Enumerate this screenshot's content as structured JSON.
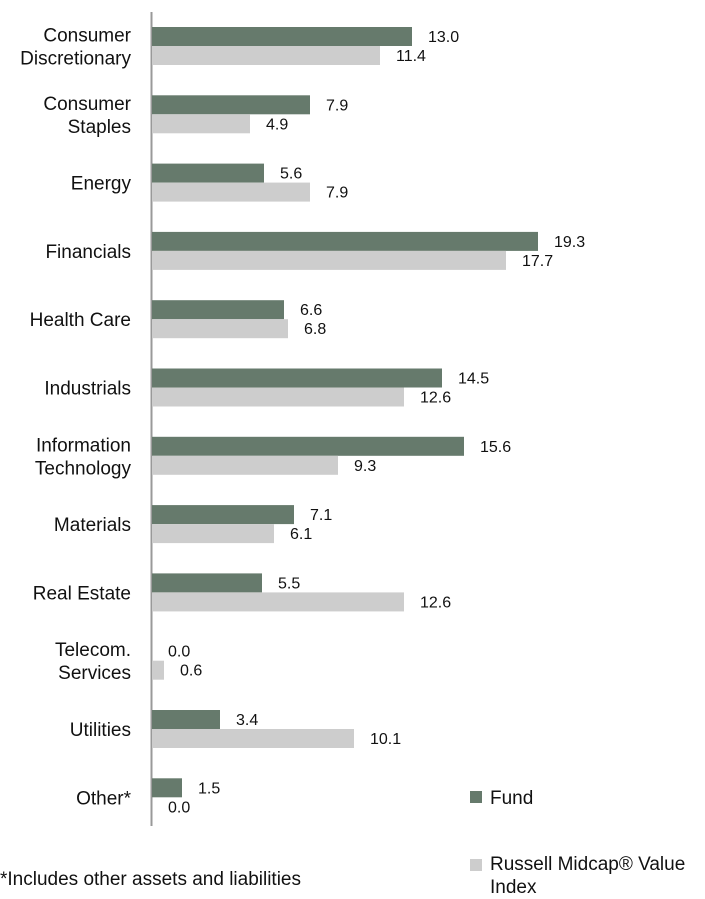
{
  "chart_data": {
    "type": "bar",
    "orientation": "horizontal",
    "categories": [
      [
        "Consumer",
        "Discretionary"
      ],
      [
        "Consumer",
        "Staples"
      ],
      [
        "Energy"
      ],
      [
        "Financials"
      ],
      [
        "Health Care"
      ],
      [
        "Industrials"
      ],
      [
        "Information",
        "Technology"
      ],
      [
        "Materials"
      ],
      [
        "Real Estate"
      ],
      [
        "Telecom.",
        "Services"
      ],
      [
        "Utilities"
      ],
      [
        "Other*"
      ]
    ],
    "series": [
      {
        "name": "Fund",
        "color": "#667a6c",
        "values": [
          13.0,
          7.9,
          5.6,
          19.3,
          6.6,
          14.5,
          15.6,
          7.1,
          5.5,
          0.0,
          3.4,
          1.5
        ]
      },
      {
        "name": "Russell Midcap® Value Index",
        "color": "#cdcdcd",
        "values": [
          11.4,
          4.9,
          7.9,
          17.7,
          6.8,
          12.6,
          9.3,
          6.1,
          12.6,
          0.6,
          10.1,
          0.0
        ]
      }
    ],
    "xlim": [
      0,
      20
    ],
    "value_format": "0.0",
    "legend": {
      "position": "bottom-right"
    },
    "grid": false
  },
  "footnote": "*Includes other assets and liabilities"
}
